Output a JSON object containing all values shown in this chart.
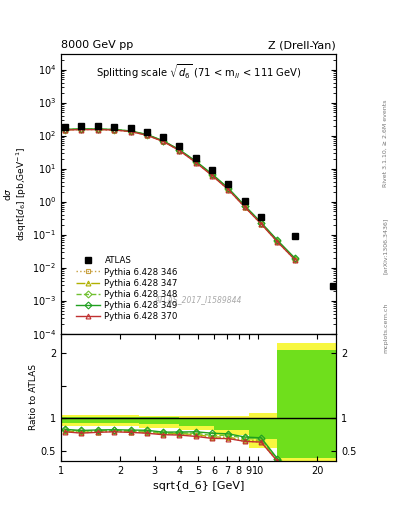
{
  "title_left": "8000 GeV pp",
  "title_right": "Z (Drell-Yan)",
  "plot_title": "Splitting scale $\\sqrt{\\mathregular{d_6}}$ (71 < m$_{\\mathregular{ll}}$ < 111 GeV)",
  "xlabel": "sqrt{d_6} [GeV]",
  "ylabel_main": "d$\\sigma$/dsqrt[$\\mathregular{d_6}$] [pb,GeV$^{-1}$]",
  "ylabel_ratio": "Ratio to ATLAS",
  "watermark": "ATLAS_2017_I1589844",
  "atlas_x": [
    1.05,
    1.27,
    1.54,
    1.86,
    2.26,
    2.73,
    3.31,
    4.0,
    4.85,
    5.87,
    7.1,
    8.6,
    10.41,
    15.5,
    24.0
  ],
  "atlas_y": [
    185,
    195,
    192,
    185,
    168,
    132,
    88,
    47,
    21,
    8.8,
    3.3,
    1.05,
    0.33,
    0.088,
    0.0028
  ],
  "py_x": [
    1.05,
    1.27,
    1.54,
    1.86,
    2.26,
    2.73,
    3.31,
    4.0,
    4.85,
    5.87,
    7.1,
    8.6,
    10.41,
    12.6,
    15.5
  ],
  "py346_y": [
    148,
    152,
    152,
    148,
    133,
    103,
    67,
    35.5,
    15.5,
    6.2,
    2.3,
    0.68,
    0.21,
    0.06,
    0.017
  ],
  "py347_y": [
    150,
    154,
    153,
    149,
    134,
    104,
    67.5,
    36,
    15.8,
    6.3,
    2.35,
    0.7,
    0.215,
    0.062,
    0.018
  ],
  "py348_y": [
    152,
    157,
    156,
    151,
    136,
    106,
    68.5,
    36.5,
    16.2,
    6.5,
    2.45,
    0.73,
    0.225,
    0.065,
    0.018
  ],
  "py349_y": [
    154,
    159,
    158,
    153,
    138,
    108,
    69.5,
    37.2,
    16.7,
    6.8,
    2.52,
    0.75,
    0.232,
    0.067,
    0.019
  ],
  "py370_y": [
    147,
    151,
    151,
    147,
    132,
    102,
    66,
    35.0,
    15.2,
    6.1,
    2.28,
    0.68,
    0.21,
    0.06,
    0.017
  ],
  "colors": {
    "py346": "#c8a040",
    "py347": "#b0b000",
    "py348": "#70c030",
    "py349": "#20a020",
    "py370": "#c03030"
  },
  "band_x": [
    1.0,
    2.5,
    4.0,
    6.0,
    9.0,
    12.5,
    25.0
  ],
  "band_green_lo": [
    0.93,
    0.91,
    0.88,
    0.82,
    0.68,
    0.4,
    0.4
  ],
  "band_green_hi": [
    1.02,
    1.02,
    1.01,
    1.01,
    1.01,
    2.05,
    2.05
  ],
  "band_yellow_lo": [
    0.88,
    0.86,
    0.82,
    0.74,
    0.55,
    0.35,
    0.35
  ],
  "band_yellow_hi": [
    1.05,
    1.04,
    1.04,
    1.04,
    1.08,
    2.15,
    2.15
  ],
  "xlim": [
    1.0,
    25.0
  ],
  "ylim_main": [
    0.0001,
    30000.0
  ],
  "ylim_ratio": [
    0.35,
    2.3
  ]
}
